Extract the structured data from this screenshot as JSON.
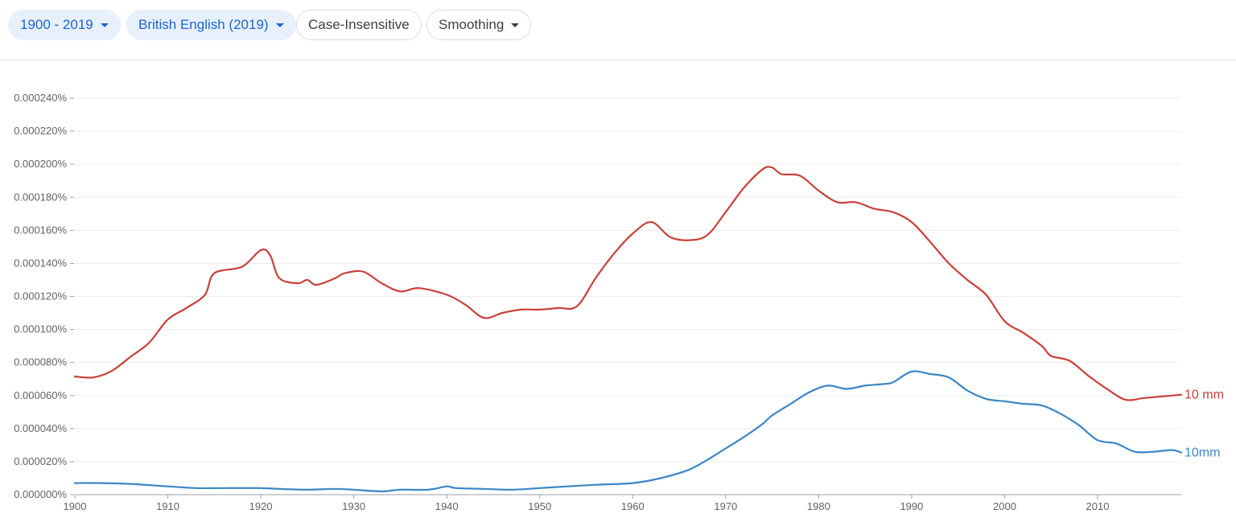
{
  "toolbar": {
    "year_range": "1900 - 2019",
    "corpus": "British English (2019)",
    "case": "Case-Insensitive",
    "smoothing": "Smoothing"
  },
  "colors": {
    "accent": "#1967d2",
    "series_red": "#c9403a",
    "series_blue": "#3b86c6"
  },
  "chart_data": {
    "type": "line",
    "title": "",
    "xlabel": "",
    "ylabel": "",
    "xlim": [
      1900,
      2019
    ],
    "ylim": [
      0,
      0.00024
    ],
    "x_ticks": [
      "1900",
      "1910",
      "1920",
      "1930",
      "1940",
      "1950",
      "1960",
      "1970",
      "1980",
      "1990",
      "2000",
      "2010"
    ],
    "y_ticks": [
      "0.000000%",
      "0.000020%",
      "0.000040%",
      "0.000060%",
      "0.000080%",
      "0.000100%",
      "0.000120%",
      "0.000140%",
      "0.000160%",
      "0.000180%",
      "0.000200%",
      "0.000220%",
      "0.000240%"
    ],
    "grid": true,
    "series": [
      {
        "name": "10 mm",
        "color": "#c9403a",
        "points": [
          [
            1900,
            7.15e-05
          ],
          [
            1902,
            7.1e-05
          ],
          [
            1904,
            7.5e-05
          ],
          [
            1906,
            8.35e-05
          ],
          [
            1908,
            9.2e-05
          ],
          [
            1910,
            0.000106
          ],
          [
            1912,
            0.000113
          ],
          [
            1914,
            0.000121
          ],
          [
            1915,
            0.000134
          ],
          [
            1918,
            0.000138
          ],
          [
            1920,
            0.000148
          ],
          [
            1921,
            0.000145
          ],
          [
            1922,
            0.000131
          ],
          [
            1924,
            0.000128
          ],
          [
            1925,
            0.00013
          ],
          [
            1926,
            0.000127
          ],
          [
            1928,
            0.000131
          ],
          [
            1929,
            0.000134
          ],
          [
            1931,
            0.000135
          ],
          [
            1933,
            0.000128
          ],
          [
            1935,
            0.000123
          ],
          [
            1937,
            0.000125
          ],
          [
            1940,
            0.000121
          ],
          [
            1942,
            0.000115
          ],
          [
            1944,
            0.000107
          ],
          [
            1946,
            0.00011
          ],
          [
            1948,
            0.000112
          ],
          [
            1950,
            0.000112
          ],
          [
            1952,
            0.000113
          ],
          [
            1954,
            0.000114
          ],
          [
            1956,
            0.000131
          ],
          [
            1958,
            0.000146
          ],
          [
            1960,
            0.000158
          ],
          [
            1962,
            0.000165
          ],
          [
            1964,
            0.000156
          ],
          [
            1966,
            0.000154
          ],
          [
            1968,
            0.000157
          ],
          [
            1970,
            0.000171
          ],
          [
            1972,
            0.000186
          ],
          [
            1974,
            0.000197
          ],
          [
            1975,
            0.000198
          ],
          [
            1976,
            0.000194
          ],
          [
            1978,
            0.000193
          ],
          [
            1980,
            0.000184
          ],
          [
            1982,
            0.000177
          ],
          [
            1984,
            0.000177
          ],
          [
            1986,
            0.000173
          ],
          [
            1988,
            0.000171
          ],
          [
            1990,
            0.000165
          ],
          [
            1992,
            0.000153
          ],
          [
            1994,
            0.00014
          ],
          [
            1996,
            0.00013
          ],
          [
            1998,
            0.000121
          ],
          [
            2000,
            0.000105
          ],
          [
            2002,
            9.8e-05
          ],
          [
            2004,
            9e-05
          ],
          [
            2005,
            8.4e-05
          ],
          [
            2007,
            8.1e-05
          ],
          [
            2009,
            7.2e-05
          ],
          [
            2011,
            6.4e-05
          ],
          [
            2013,
            5.75e-05
          ],
          [
            2015,
            5.85e-05
          ],
          [
            2017,
            5.95e-05
          ],
          [
            2019,
            6.05e-05
          ]
        ]
      },
      {
        "name": "10mm",
        "color": "#3b86c6",
        "points": [
          [
            1900,
            7e-06
          ],
          [
            1903,
            7e-06
          ],
          [
            1906,
            6.5e-06
          ],
          [
            1910,
            5e-06
          ],
          [
            1913,
            4e-06
          ],
          [
            1916,
            4e-06
          ],
          [
            1920,
            4e-06
          ],
          [
            1922,
            3.5e-06
          ],
          [
            1925,
            3e-06
          ],
          [
            1928,
            3.5e-06
          ],
          [
            1930,
            3e-06
          ],
          [
            1933,
            2e-06
          ],
          [
            1935,
            3e-06
          ],
          [
            1938,
            3e-06
          ],
          [
            1940,
            5e-06
          ],
          [
            1941,
            4e-06
          ],
          [
            1944,
            3.5e-06
          ],
          [
            1947,
            3e-06
          ],
          [
            1950,
            4e-06
          ],
          [
            1953,
            5e-06
          ],
          [
            1956,
            6e-06
          ],
          [
            1960,
            7e-06
          ],
          [
            1963,
            1e-05
          ],
          [
            1966,
            1.5e-05
          ],
          [
            1968,
            2.1e-05
          ],
          [
            1970,
            2.8e-05
          ],
          [
            1972,
            3.5e-05
          ],
          [
            1974,
            4.3e-05
          ],
          [
            1975,
            4.8e-05
          ],
          [
            1977,
            5.5e-05
          ],
          [
            1979,
            6.2e-05
          ],
          [
            1981,
            6.6e-05
          ],
          [
            1983,
            6.4e-05
          ],
          [
            1985,
            6.6e-05
          ],
          [
            1987,
            6.7e-05
          ],
          [
            1988,
            6.8e-05
          ],
          [
            1990,
            7.45e-05
          ],
          [
            1992,
            7.3e-05
          ],
          [
            1994,
            7.1e-05
          ],
          [
            1996,
            6.3e-05
          ],
          [
            1998,
            5.8e-05
          ],
          [
            2000,
            5.65e-05
          ],
          [
            2002,
            5.5e-05
          ],
          [
            2004,
            5.4e-05
          ],
          [
            2006,
            4.9e-05
          ],
          [
            2008,
            4.2e-05
          ],
          [
            2010,
            3.3e-05
          ],
          [
            2012,
            3.1e-05
          ],
          [
            2014,
            2.6e-05
          ],
          [
            2016,
            2.6e-05
          ],
          [
            2018,
            2.7e-05
          ],
          [
            2019,
            2.55e-05
          ]
        ]
      }
    ]
  }
}
